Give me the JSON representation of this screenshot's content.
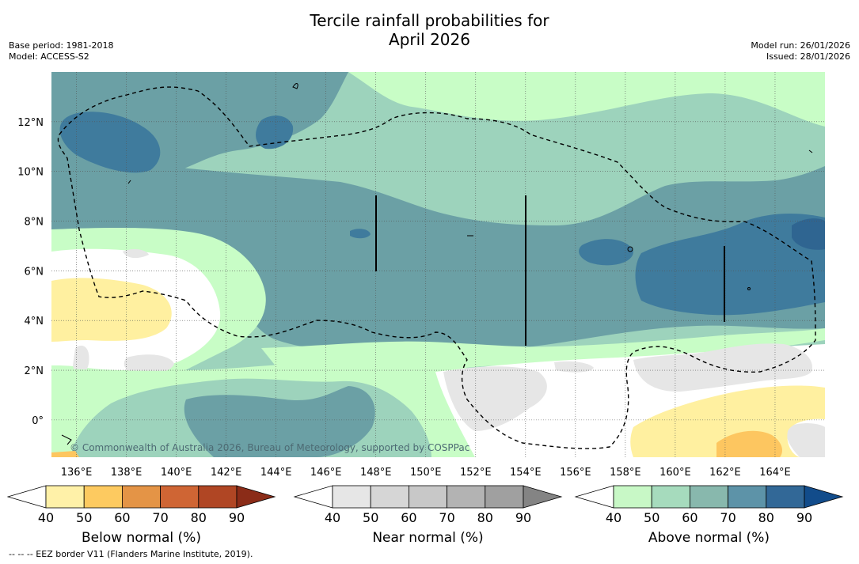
{
  "title": {
    "line1": "Tercile rainfall probabilities for",
    "line2": "April 2026"
  },
  "meta_left": {
    "base_period": "Base period: 1981-2018",
    "model": "Model: ACCESS-S2"
  },
  "meta_right": {
    "model_run": "Model run: 26/01/2026",
    "issued": "Issued: 28/01/2026"
  },
  "map": {
    "lon_range": [
      135,
      166
    ],
    "lat_range": [
      -1.5,
      14
    ],
    "lon_ticks": [
      "136°E",
      "138°E",
      "140°E",
      "142°E",
      "144°E",
      "146°E",
      "148°E",
      "150°E",
      "152°E",
      "154°E",
      "156°E",
      "158°E",
      "160°E",
      "162°E",
      "164°E"
    ],
    "lat_ticks": [
      "12°N",
      "10°N",
      "8°N",
      "6°N",
      "4°N",
      "2°N",
      "0°"
    ],
    "copyright": "© Commonwealth of Australia 2026, Bureau of Meteorology, supported by COSPPac"
  },
  "colorbars": [
    {
      "title": "Below normal (%)",
      "ticks": [
        "40",
        "50",
        "60",
        "70",
        "80",
        "90"
      ],
      "colors": [
        "#fff1a8",
        "#fdca60",
        "#e49446",
        "#cf6534",
        "#b04624",
        "#8b2c18"
      ]
    },
    {
      "title": "Near normal (%)",
      "ticks": [
        "40",
        "50",
        "60",
        "70",
        "80",
        "90"
      ],
      "colors": [
        "#e6e6e6",
        "#d6d6d6",
        "#c8c8c8",
        "#b3b3b3",
        "#a0a0a0",
        "#848484"
      ]
    },
    {
      "title": "Above normal (%)",
      "ticks": [
        "40",
        "50",
        "60",
        "70",
        "80",
        "90"
      ],
      "colors": [
        "#c8f8c6",
        "#a6dbbd",
        "#88b8ad",
        "#5d93a8",
        "#326897",
        "#124c8b"
      ]
    }
  ],
  "footnote": "--  --  -- EEZ border V11 (Flanders Marine Institute, 2019).",
  "palette": {
    "above_40": "#c8fdc6",
    "above_50": "#9dd3bc",
    "above_60": "#6ba0a5",
    "above_70": "#3f7b9d",
    "below_40": "#fff0a0",
    "below_50": "#fdc660",
    "near_40": "#e6e6e6"
  }
}
